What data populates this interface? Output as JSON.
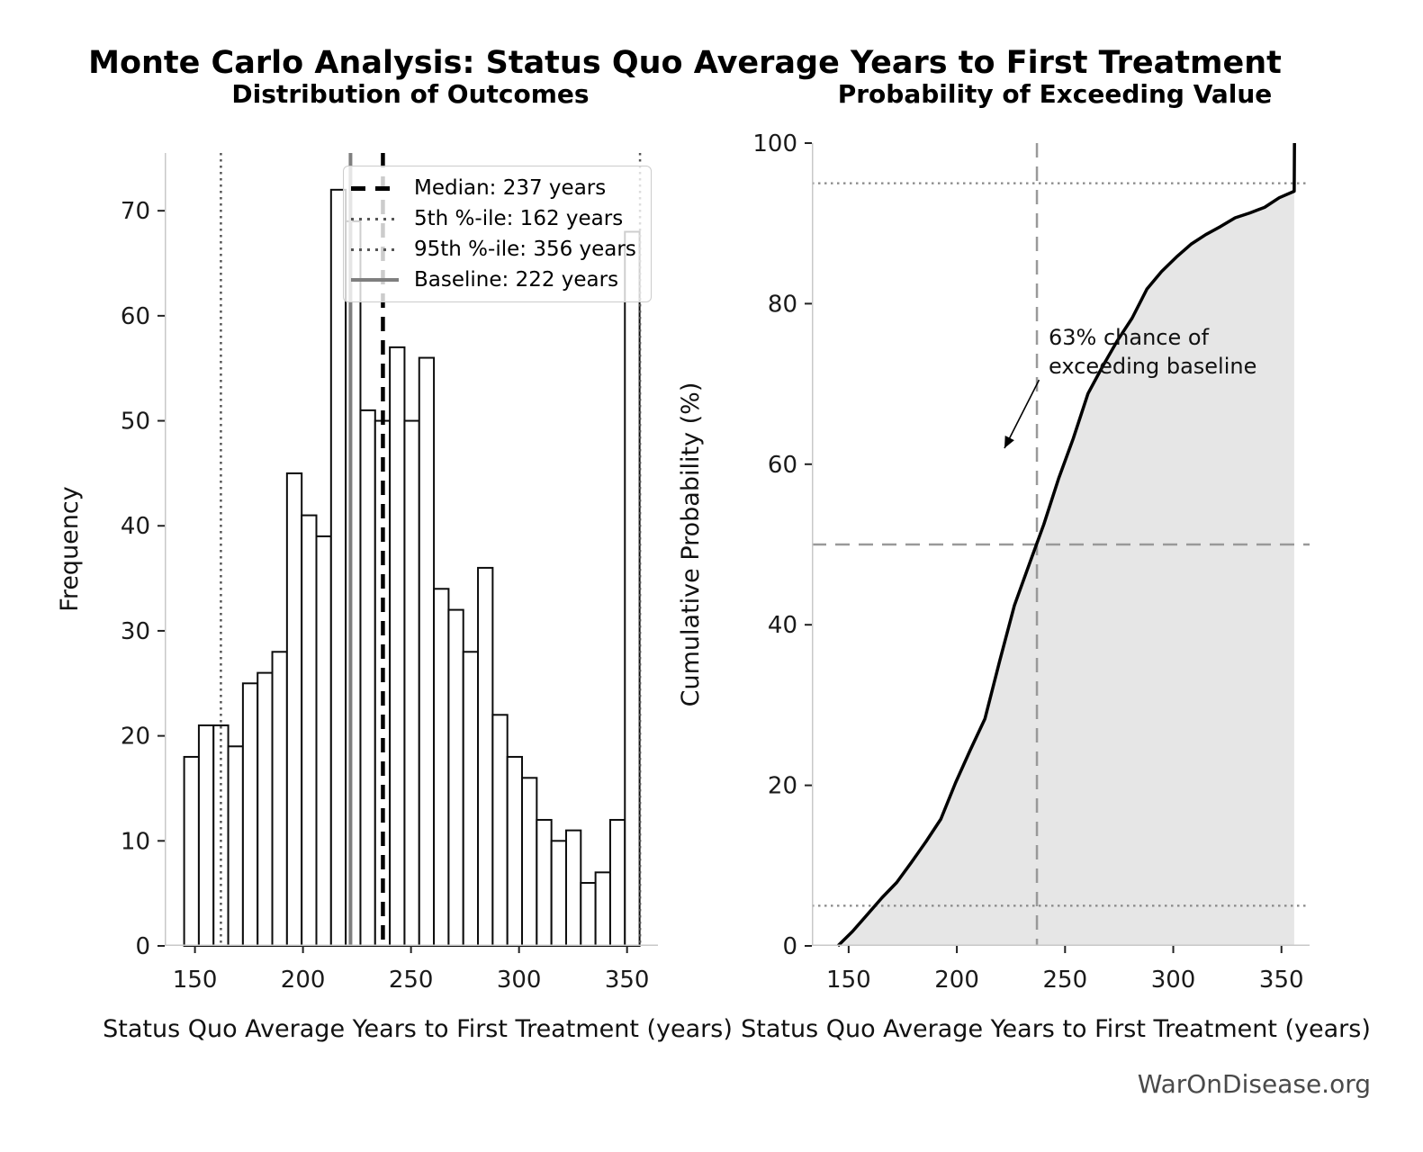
{
  "title": "Monte Carlo Analysis: Status Quo Average Years to First Treatment",
  "watermark": "WarOnDisease.org",
  "colors": {
    "bar_fill": "#ffffff",
    "bar_edge": "#0d0d0d",
    "median_line": "#000000",
    "percentile_line": "#555555",
    "baseline_line": "#7f7f7f",
    "curve": "#000000",
    "area_fill": "#e6e6e6",
    "crosshair_dashed": "#999999",
    "crosshair_dotted": "#888888",
    "spine": "#c8c8c8",
    "tick": "#222222",
    "text": "#111111",
    "watermark_color": "#4a4a4a"
  },
  "legend": {
    "items": [
      {
        "label": "Median: 237 years",
        "style": "dashed-black"
      },
      {
        "label": "5th %-ile: 162 years",
        "style": "dotted-gray"
      },
      {
        "label": "95th %-ile: 356 years",
        "style": "dotted-gray"
      },
      {
        "label": "Baseline: 222 years",
        "style": "solid-gray"
      }
    ]
  },
  "chart_data": [
    {
      "type": "bar",
      "subtype": "histogram",
      "title": "Distribution of Outcomes",
      "xlabel": "Status Quo Average Years to First Treatment (years)",
      "ylabel": "Frequency",
      "bin_start": 145,
      "bin_width": 6.8,
      "counts": [
        18,
        21,
        21,
        19,
        25,
        26,
        28,
        45,
        41,
        39,
        72,
        69,
        51,
        50,
        57,
        50,
        56,
        34,
        32,
        28,
        36,
        22,
        18,
        16,
        12,
        10,
        11,
        6,
        7,
        12,
        68
      ],
      "xlim": [
        136,
        364.3
      ],
      "ylim": [
        0,
        75.5
      ],
      "xticks": [
        150,
        200,
        250,
        300,
        350
      ],
      "yticks": [
        0,
        10,
        20,
        30,
        40,
        50,
        60,
        70
      ],
      "grid": false,
      "legend_position": "upper center-right",
      "ref_lines": [
        {
          "x": 162,
          "style": "dotted",
          "width": 2.5,
          "color_key": "percentile_line",
          "label": "5th %-ile: 162 years"
        },
        {
          "x": 356,
          "style": "dotted",
          "width": 2.5,
          "color_key": "percentile_line",
          "label": "95th %-ile: 356 years"
        },
        {
          "x": 222,
          "style": "solid",
          "width": 4,
          "color_key": "baseline_line",
          "label": "Baseline: 222 years"
        },
        {
          "x": 237,
          "style": "dashed",
          "width": 4.5,
          "color_key": "median_line",
          "label": "Median: 237 years"
        }
      ]
    },
    {
      "type": "line",
      "subtype": "cdf",
      "title": "Probability of Exceeding Value",
      "xlabel": "Status Quo Average Years to First Treatment (years)",
      "ylabel": "Cumulative Probability (%)",
      "x": [
        145,
        151.8,
        158.6,
        165.4,
        172.2,
        179,
        185.8,
        192.6,
        199.4,
        206.2,
        213,
        219.8,
        226.6,
        233.4,
        240.2,
        247,
        253.8,
        260.6,
        267.4,
        274.2,
        281,
        287.8,
        294.6,
        301.4,
        308.2,
        315,
        321.8,
        328.6,
        335.4,
        342.2,
        349,
        355.9,
        356
      ],
      "y": [
        0,
        1.8,
        3.9,
        6.0,
        7.9,
        10.4,
        13.0,
        15.8,
        20.3,
        24.4,
        28.3,
        35.5,
        42.4,
        47.5,
        52.5,
        58.2,
        63.2,
        68.8,
        72.2,
        75.4,
        78.2,
        81.8,
        84.0,
        85.8,
        87.4,
        88.6,
        89.6,
        90.7,
        91.3,
        92.0,
        93.2,
        94.0,
        100
      ],
      "fill_under": true,
      "xlim": [
        133,
        363
      ],
      "ylim": [
        0,
        100
      ],
      "xticks": [
        150,
        200,
        250,
        300,
        350
      ],
      "yticks": [
        0,
        20,
        40,
        60,
        80,
        100
      ],
      "grid": false,
      "ref_lines": [
        {
          "y": 95,
          "style": "dotted",
          "width": 2.2,
          "color_key": "crosshair_dotted"
        },
        {
          "y": 5,
          "style": "dotted",
          "width": 2.2,
          "color_key": "crosshair_dotted"
        },
        {
          "y": 50,
          "style": "dashed",
          "width": 2.5,
          "color_key": "crosshair_dashed"
        },
        {
          "x": 237,
          "style": "dashed",
          "width": 2.5,
          "color_key": "crosshair_dashed"
        }
      ],
      "annotation": {
        "text": "63% chance of\nexceeding baseline",
        "text_xy": [
          241,
          78
        ],
        "arrow_from_xy": [
          238,
          70.5
        ],
        "arrow_tip_xy": [
          222,
          62
        ]
      }
    }
  ]
}
